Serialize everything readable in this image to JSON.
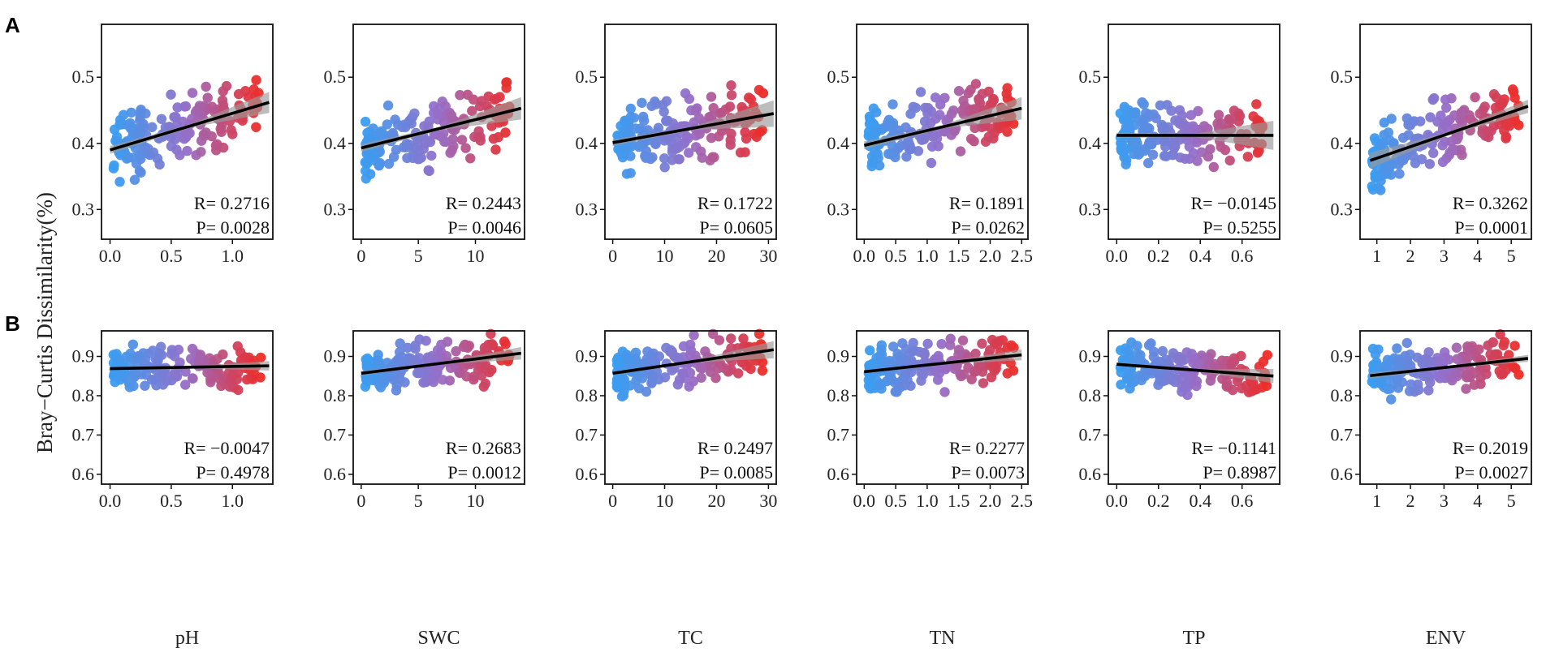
{
  "figure": {
    "ylabel": "Bray−Curtis Dissimilarity(%)",
    "row_letters": [
      "A",
      "B"
    ]
  },
  "colors": {
    "low": "#3b9df0",
    "high": "#ef2b24",
    "fit": "#000000",
    "band": "#9a9a9a"
  },
  "chart_data": {
    "type": "scatter",
    "xlabels": [
      "pH",
      "SWC",
      "TC",
      "TN",
      "TP",
      "ENV"
    ],
    "x_axes": [
      {
        "ticks": [
          0.0,
          0.5,
          1.0
        ],
        "labels": [
          "0.0",
          "0.5",
          "1.0"
        ],
        "xlim": [
          -0.07,
          1.33
        ]
      },
      {
        "ticks": [
          0,
          5,
          10
        ],
        "labels": [
          "0",
          "5",
          "10"
        ],
        "xlim": [
          -0.7,
          14.3
        ]
      },
      {
        "ticks": [
          0,
          10,
          20,
          30
        ],
        "labels": [
          "0",
          "10",
          "20",
          "30"
        ],
        "xlim": [
          -1.5,
          31.5
        ]
      },
      {
        "ticks": [
          0.0,
          0.5,
          1.0,
          1.5,
          2.0,
          2.5
        ],
        "labels": [
          "0.0",
          "0.5",
          "1.0",
          "1.5",
          "2.0",
          "2.5"
        ],
        "xlim": [
          -0.12,
          2.6
        ]
      },
      {
        "ticks": [
          0.0,
          0.2,
          0.4,
          0.6
        ],
        "labels": [
          "0.0",
          "0.2",
          "0.4",
          "0.6"
        ],
        "xlim": [
          -0.04,
          0.78
        ]
      },
      {
        "ticks": [
          1,
          2,
          3,
          4,
          5
        ],
        "labels": [
          "1",
          "2",
          "3",
          "4",
          "5"
        ],
        "xlim": [
          0.5,
          5.6
        ]
      }
    ],
    "rows": [
      {
        "id": "A",
        "ylim": [
          0.255,
          0.58
        ],
        "yticks": [
          0.3,
          0.4,
          0.5
        ],
        "ytick_labels": [
          "0.3",
          "0.4",
          "0.5"
        ],
        "panels": [
          {
            "R": "R= 0.2716",
            "P": "P= 0.0028",
            "fit": [
              [
                0.0,
                0.39
              ],
              [
                1.3,
                0.462
              ]
            ],
            "band": [
              0.006,
              0.016
            ]
          },
          {
            "R": "R= 0.2443",
            "P": "P= 0.0046",
            "fit": [
              [
                0,
                0.393
              ],
              [
                14,
                0.453
              ]
            ],
            "band": [
              0.006,
              0.017
            ]
          },
          {
            "R": "R= 0.1722",
            "P": "P= 0.0605",
            "fit": [
              [
                0,
                0.401
              ],
              [
                31,
                0.445
              ]
            ],
            "band": [
              0.005,
              0.02
            ]
          },
          {
            "R": "R= 0.1891",
            "P": "P= 0.0262",
            "fit": [
              [
                0,
                0.397
              ],
              [
                2.5,
                0.453
              ]
            ],
            "band": [
              0.006,
              0.017
            ]
          },
          {
            "R": "R= −0.0145",
            "P": "P= 0.5255",
            "fit": [
              [
                0,
                0.412
              ],
              [
                0.75,
                0.412
              ]
            ],
            "band": [
              0.004,
              0.022
            ]
          },
          {
            "R": "R= 0.3262",
            "P": "P= 0.0001",
            "fit": [
              [
                0.8,
                0.374
              ],
              [
                5.5,
                0.456
              ]
            ],
            "band": [
              0.012,
              0.01
            ]
          }
        ]
      },
      {
        "id": "B",
        "ylim": [
          0.575,
          0.965
        ],
        "yticks": [
          0.6,
          0.7,
          0.8,
          0.9
        ],
        "ytick_labels": [
          "0.6",
          "0.7",
          "0.8",
          "0.9"
        ],
        "panels": [
          {
            "R": "R= −0.0047",
            "P": "P= 0.4978",
            "fit": [
              [
                0.0,
                0.869
              ],
              [
                1.3,
                0.876
              ]
            ],
            "band": [
              0.004,
              0.012
            ]
          },
          {
            "R": "R= 0.2683",
            "P": "P= 0.0012",
            "fit": [
              [
                0,
                0.857
              ],
              [
                14,
                0.908
              ]
            ],
            "band": [
              0.006,
              0.016
            ]
          },
          {
            "R": "R= 0.2497",
            "P": "P= 0.0085",
            "fit": [
              [
                0,
                0.857
              ],
              [
                31,
                0.917
              ]
            ],
            "band": [
              0.005,
              0.022
            ]
          },
          {
            "R": "R= 0.2277",
            "P": "P= 0.0073",
            "fit": [
              [
                0,
                0.861
              ],
              [
                2.5,
                0.904
              ]
            ],
            "band": [
              0.005,
              0.014
            ]
          },
          {
            "R": "R= −0.1141",
            "P": "P= 0.8987",
            "fit": [
              [
                0,
                0.88
              ],
              [
                0.75,
                0.85
              ]
            ],
            "band": [
              0.005,
              0.018
            ]
          },
          {
            "R": "R= 0.2019",
            "P": "P= 0.0027",
            "fit": [
              [
                0.8,
                0.851
              ],
              [
                5.5,
                0.895
              ]
            ],
            "band": [
              0.008,
              0.009
            ]
          }
        ]
      }
    ]
  }
}
